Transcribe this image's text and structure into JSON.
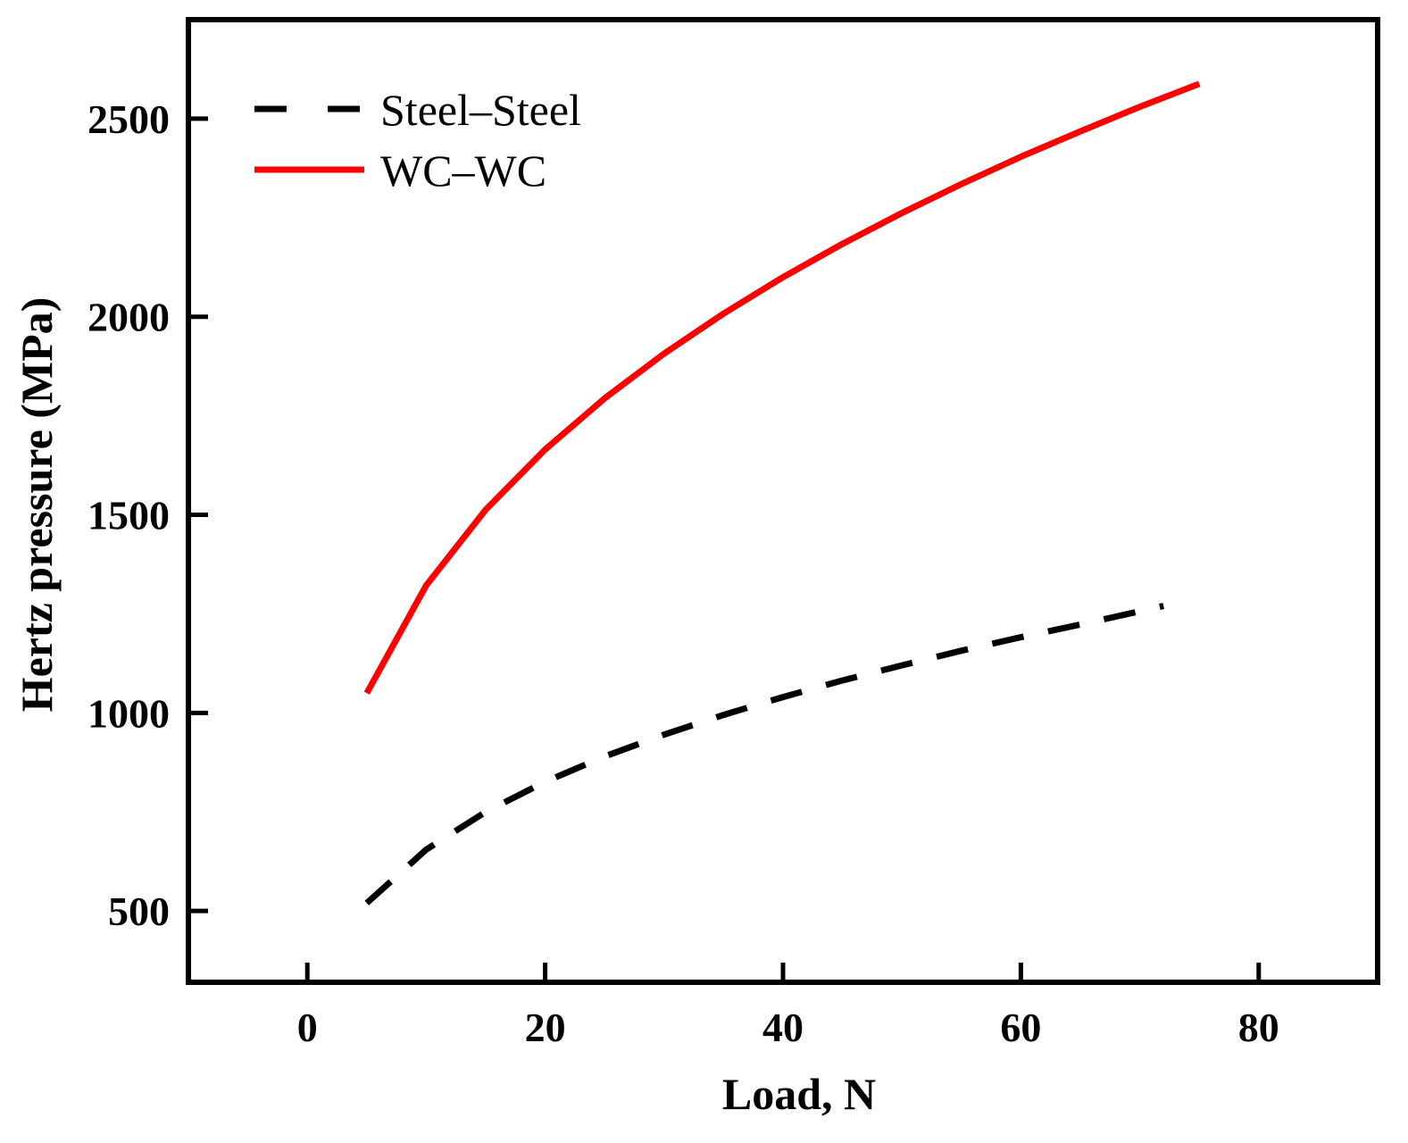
{
  "chart_data": {
    "type": "line",
    "title": "",
    "xlabel": "Load, N",
    "ylabel": "Hertz pressure (MPa)",
    "xlim": [
      -10,
      90
    ],
    "ylim": [
      320,
      2750
    ],
    "xticks": [
      0,
      20,
      40,
      60,
      80
    ],
    "yticks": [
      500,
      1000,
      1500,
      2000,
      2500
    ],
    "grid": false,
    "legend_position": "top-left",
    "series": [
      {
        "name": "Steel–Steel",
        "color": "#000000",
        "style": "dashed",
        "x": [
          5,
          10,
          15,
          20,
          25,
          30,
          35,
          40,
          45,
          50,
          55,
          60,
          65,
          72
        ],
        "y": [
          520,
          655,
          750,
          826,
          890,
          945,
          995,
          1040,
          1082,
          1120,
          1157,
          1191,
          1223,
          1270
        ]
      },
      {
        "name": "WC–WC",
        "color": "#ff0000",
        "style": "solid",
        "x": [
          5,
          10,
          15,
          20,
          25,
          30,
          35,
          40,
          45,
          50,
          55,
          60,
          65,
          70,
          75
        ],
        "y": [
          1050,
          1322,
          1513,
          1665,
          1794,
          1907,
          2008,
          2100,
          2184,
          2262,
          2335,
          2404,
          2468,
          2530,
          2588
        ]
      }
    ]
  }
}
